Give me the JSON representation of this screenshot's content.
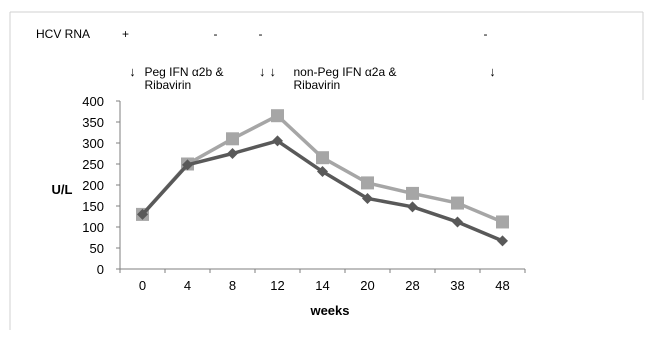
{
  "hcv_rna": {
    "label": "HCV RNA",
    "entries": [
      {
        "week": "0",
        "status": "+"
      },
      {
        "week": "8",
        "status": "-"
      },
      {
        "week": "12",
        "status": "-"
      },
      {
        "week": "48",
        "status": "-"
      }
    ]
  },
  "annotations": [
    {
      "id": "peg",
      "weeks": [
        "0"
      ],
      "arrows": "↓",
      "lines": [
        "Peg IFN α2b &",
        "Ribavirin"
      ]
    },
    {
      "id": "nonpeg",
      "weeks": [
        "12"
      ],
      "arrows": "↓↓",
      "lines": [
        "non-Peg IFN α2a &",
        "Ribavirin"
      ]
    },
    {
      "id": "end",
      "weeks": [
        "48"
      ],
      "arrows": "↓",
      "lines": []
    }
  ],
  "chart_data": {
    "type": "line",
    "categories": [
      "0",
      "4",
      "8",
      "12",
      "14",
      "20",
      "28",
      "38",
      "48"
    ],
    "series": [
      {
        "values": [
          130,
          250,
          310,
          365,
          265,
          205,
          180,
          157,
          112
        ],
        "color": "#a6a6a6",
        "marker": "square"
      },
      {
        "values": [
          130,
          248,
          275,
          305,
          232,
          168,
          148,
          112,
          67
        ],
        "color": "#595959",
        "marker": "diamond"
      }
    ],
    "xlabel": "weeks",
    "ylabel": "U/L",
    "ylim": [
      0,
      400
    ],
    "yticks": [
      0,
      50,
      100,
      150,
      200,
      250,
      300,
      350,
      400
    ],
    "grid": false,
    "legend": "none"
  }
}
